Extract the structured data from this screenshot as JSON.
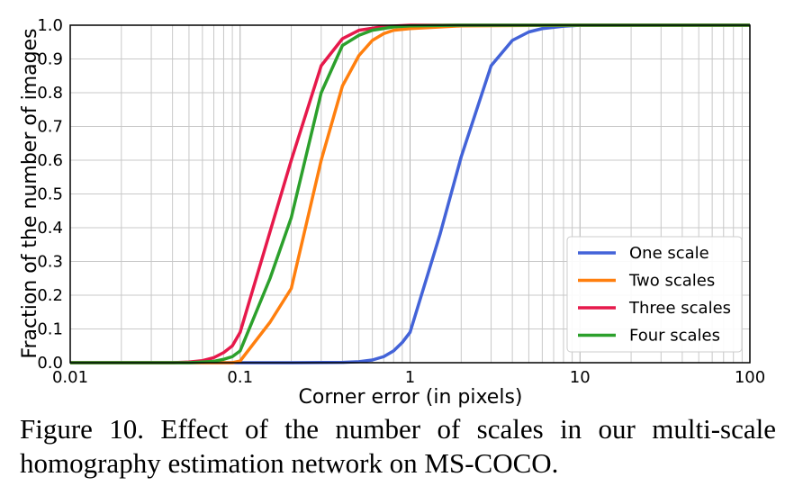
{
  "chart_data": {
    "type": "line",
    "xlabel": "Corner error (in pixels)",
    "ylabel": "Fraction of the number of images",
    "xscale": "log",
    "xlim": [
      0.01,
      100
    ],
    "ylim": [
      0,
      1
    ],
    "grid": true,
    "legend_position": "lower-right",
    "xtick_labels": [
      "0.01",
      "0.1",
      "1",
      "10",
      "100"
    ],
    "ytick_labels": [
      "0.0",
      "0.1",
      "0.2",
      "0.3",
      "0.4",
      "0.5",
      "0.6",
      "0.7",
      "0.8",
      "0.9",
      "1.0"
    ],
    "series": [
      {
        "name": "One scale",
        "color": "#4363d8",
        "points": [
          [
            0.01,
            0
          ],
          [
            0.2,
            0
          ],
          [
            0.4,
            0.001
          ],
          [
            0.5,
            0.003
          ],
          [
            0.6,
            0.008
          ],
          [
            0.7,
            0.018
          ],
          [
            0.8,
            0.035
          ],
          [
            0.9,
            0.06
          ],
          [
            1.0,
            0.09
          ],
          [
            1.5,
            0.38
          ],
          [
            2,
            0.61
          ],
          [
            3,
            0.88
          ],
          [
            4,
            0.955
          ],
          [
            5,
            0.98
          ],
          [
            6,
            0.99
          ],
          [
            8,
            0.997
          ],
          [
            10,
            1.0
          ],
          [
            100,
            1.0
          ]
        ]
      },
      {
        "name": "Two scales",
        "color": "#ff7f0e",
        "points": [
          [
            0.01,
            0
          ],
          [
            0.09,
            0
          ],
          [
            0.1,
            0.005
          ],
          [
            0.15,
            0.12
          ],
          [
            0.2,
            0.22
          ],
          [
            0.3,
            0.6
          ],
          [
            0.4,
            0.82
          ],
          [
            0.5,
            0.91
          ],
          [
            0.6,
            0.955
          ],
          [
            0.7,
            0.975
          ],
          [
            0.8,
            0.985
          ],
          [
            1,
            0.99
          ],
          [
            2,
            0.998
          ],
          [
            10,
            1.0
          ],
          [
            100,
            1.0
          ]
        ]
      },
      {
        "name": "Three scales",
        "color": "#e6194b",
        "points": [
          [
            0.01,
            0
          ],
          [
            0.04,
            0
          ],
          [
            0.05,
            0.002
          ],
          [
            0.06,
            0.006
          ],
          [
            0.07,
            0.015
          ],
          [
            0.08,
            0.03
          ],
          [
            0.09,
            0.05
          ],
          [
            0.1,
            0.09
          ],
          [
            0.2,
            0.6
          ],
          [
            0.3,
            0.88
          ],
          [
            0.4,
            0.96
          ],
          [
            0.5,
            0.985
          ],
          [
            0.7,
            0.996
          ],
          [
            1,
            1.0
          ],
          [
            100,
            1.0
          ]
        ]
      },
      {
        "name": "Four scales",
        "color": "#2ca02c",
        "points": [
          [
            0.01,
            0
          ],
          [
            0.05,
            0
          ],
          [
            0.07,
            0.004
          ],
          [
            0.08,
            0.01
          ],
          [
            0.09,
            0.018
          ],
          [
            0.1,
            0.035
          ],
          [
            0.15,
            0.25
          ],
          [
            0.2,
            0.43
          ],
          [
            0.3,
            0.8
          ],
          [
            0.4,
            0.94
          ],
          [
            0.5,
            0.97
          ],
          [
            0.6,
            0.985
          ],
          [
            0.8,
            0.995
          ],
          [
            1,
            0.998
          ],
          [
            2,
            1.0
          ],
          [
            100,
            1.0
          ]
        ]
      }
    ]
  },
  "caption": "Figure 10. Effect of the number of scales in our multi-scale homography estimation network on MS-COCO."
}
